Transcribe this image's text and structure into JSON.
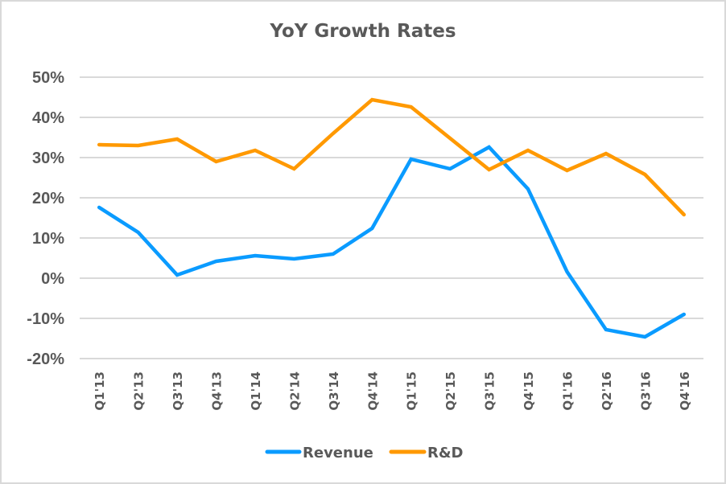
{
  "chart_data": {
    "type": "line",
    "title": "YoY Growth Rates",
    "xlabel": "",
    "ylabel": "",
    "categories": [
      "Q1'13",
      "Q2'13",
      "Q3'13",
      "Q4'13",
      "Q1'14",
      "Q2'14",
      "Q3'14",
      "Q4'14",
      "Q1'15",
      "Q2'15",
      "Q3'15",
      "Q4'15",
      "Q1'16",
      "Q2'16",
      "Q3'16",
      "Q4'16"
    ],
    "series": [
      {
        "name": "Revenue",
        "color": "#0a9bff",
        "values": [
          17.6,
          11.4,
          0.8,
          4.2,
          5.6,
          4.8,
          6.0,
          12.4,
          29.6,
          27.2,
          32.6,
          22.2,
          1.6,
          -12.8,
          -14.6,
          -9.0
        ]
      },
      {
        "name": "R&D",
        "color": "#ff9900",
        "values": [
          33.2,
          33.0,
          34.6,
          29.0,
          31.8,
          27.2,
          36.0,
          44.4,
          42.6,
          34.8,
          27.0,
          31.8,
          26.8,
          31.0,
          25.8,
          15.8
        ]
      }
    ],
    "ylim": [
      -20,
      50
    ],
    "yticks": [
      -20,
      -10,
      0,
      10,
      20,
      30,
      40,
      50
    ],
    "ytick_labels": [
      "-20%",
      "-10%",
      "0%",
      "10%",
      "20%",
      "30%",
      "40%",
      "50%"
    ],
    "grid": true,
    "legend": "bottom-center"
  }
}
